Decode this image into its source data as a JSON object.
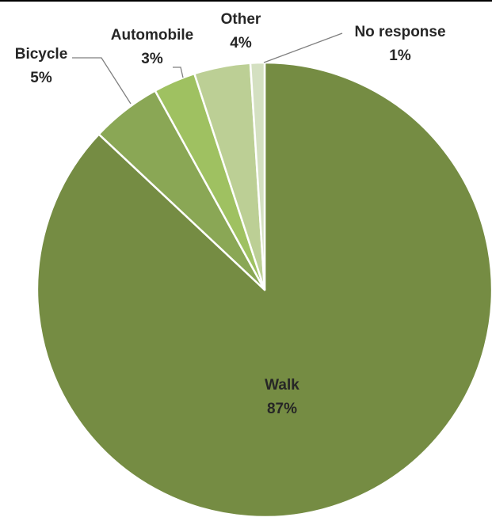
{
  "chart_data": {
    "type": "pie",
    "title": "",
    "slices": [
      {
        "name": "Walk",
        "value": 87,
        "label": "87%",
        "color": "#758c43"
      },
      {
        "name": "Bicycle",
        "value": 5,
        "label": "5%",
        "color": "#8aa755"
      },
      {
        "name": "Automobile",
        "value": 3,
        "label": "3%",
        "color": "#9fc161"
      },
      {
        "name": "Other",
        "value": 4,
        "label": "4%",
        "color": "#bccf95"
      },
      {
        "name": "No response",
        "value": 1,
        "label": "1%",
        "color": "#d4e0c1"
      }
    ],
    "legend": "none",
    "data_labels": "category name and percentage"
  }
}
